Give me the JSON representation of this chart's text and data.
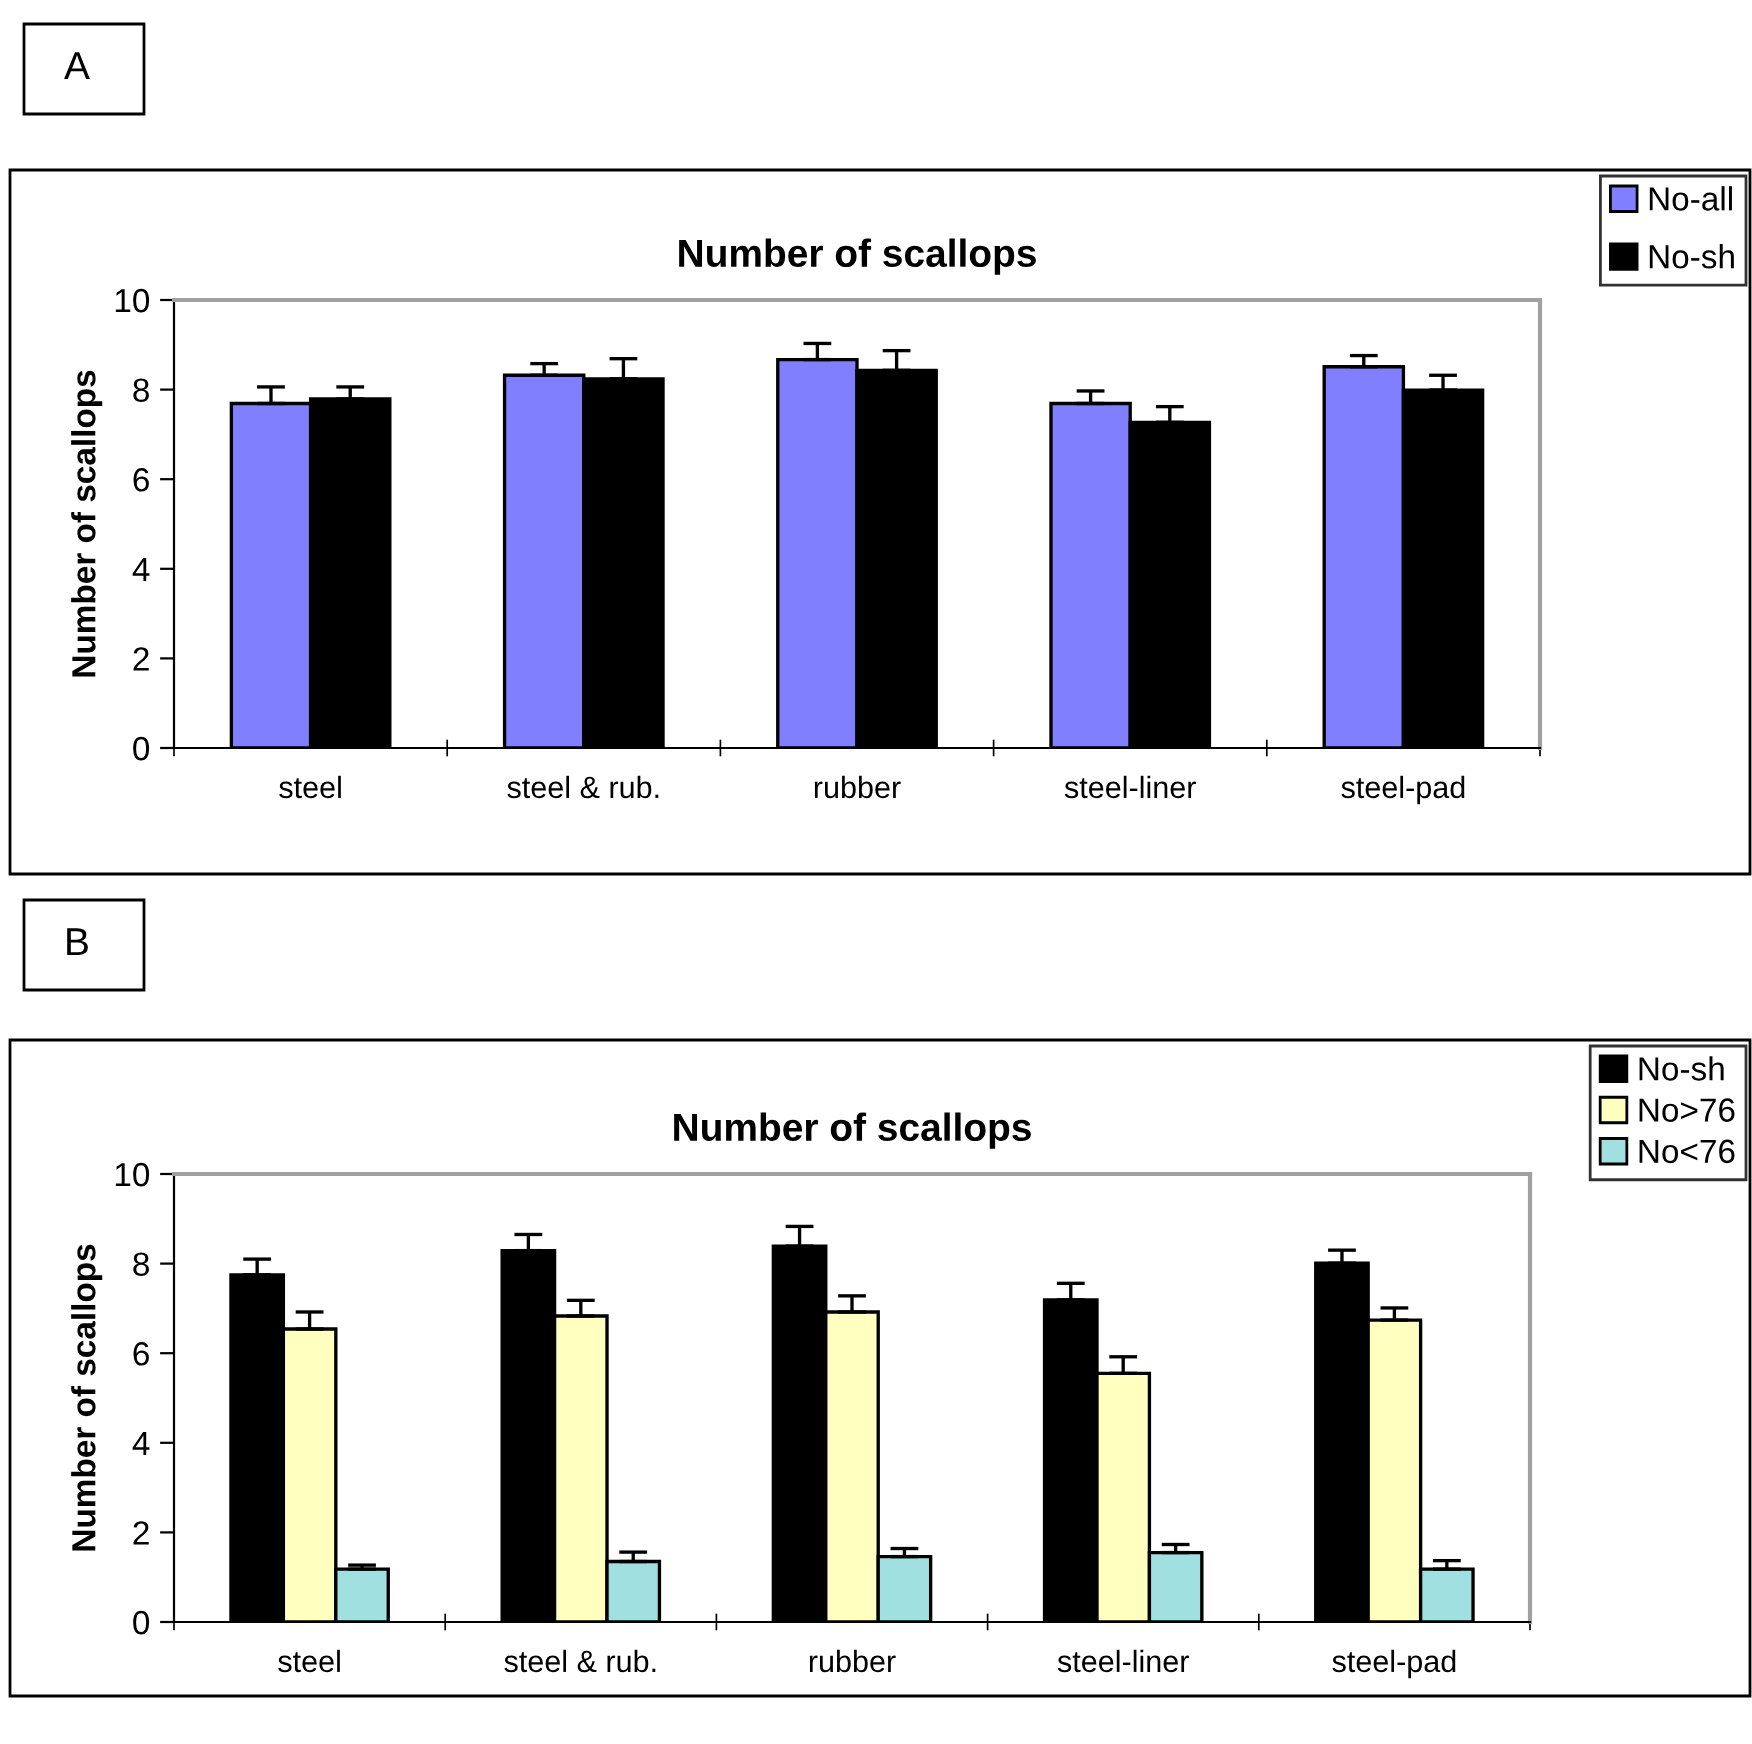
{
  "chart_data": [
    {
      "type": "bar",
      "title": "Number of scallops",
      "ylabel": "Number of scallops",
      "annotations": [
        "A"
      ],
      "categories": [
        "steel",
        "steel & rub.",
        "rubber",
        "steel-liner",
        "steel-pad"
      ],
      "series": [
        {
          "name": "No-all",
          "color": "#8080ff",
          "values": [
            7.69,
            8.32,
            8.67,
            7.69,
            8.51
          ],
          "errors": [
            [
              7.69,
              8.06
            ],
            [
              8.32,
              8.58
            ],
            [
              8.67,
              9.03
            ],
            [
              7.69,
              7.97
            ],
            [
              8.51,
              8.76
            ]
          ]
        },
        {
          "name": "No-sh",
          "color": "#000000",
          "values": [
            7.79,
            8.24,
            8.43,
            7.27,
            7.99
          ],
          "errors": [
            [
              7.79,
              8.06
            ],
            [
              8.24,
              8.69
            ],
            [
              8.43,
              8.87
            ],
            [
              7.27,
              7.62
            ],
            [
              7.99,
              8.32
            ]
          ]
        }
      ],
      "ylim": [
        0,
        10
      ],
      "yticks": [
        0,
        2,
        4,
        6,
        8,
        10
      ],
      "grid": false,
      "legend": "top right"
    },
    {
      "type": "bar",
      "title": "Number of scallops",
      "ylabel": "Number of scallops",
      "annotations": [
        "B"
      ],
      "categories": [
        "steel",
        "steel & rub.",
        "rubber",
        "steel-liner",
        "steel-pad"
      ],
      "series": [
        {
          "name": "No-sh",
          "color": "#000000",
          "values": [
            7.75,
            8.29,
            8.39,
            7.19,
            8.01
          ],
          "errors": [
            [
              7.75,
              8.1
            ],
            [
              8.29,
              8.65
            ],
            [
              8.39,
              8.83
            ],
            [
              7.19,
              7.56
            ],
            [
              8.01,
              8.3
            ]
          ]
        },
        {
          "name": "No>76",
          "color": "#ffffc0",
          "values": [
            6.54,
            6.83,
            6.92,
            5.55,
            6.74
          ],
          "errors": [
            [
              6.54,
              6.92
            ],
            [
              6.83,
              7.18
            ],
            [
              6.92,
              7.28
            ],
            [
              5.55,
              5.92
            ],
            [
              6.74,
              7.01
            ]
          ]
        },
        {
          "name": "No<76",
          "color": "#a0e0e0",
          "values": [
            1.18,
            1.35,
            1.46,
            1.55,
            1.18
          ],
          "errors": [
            [
              1.18,
              1.27
            ],
            [
              1.35,
              1.56
            ],
            [
              1.46,
              1.64
            ],
            [
              1.55,
              1.73
            ],
            [
              1.18,
              1.37
            ]
          ]
        }
      ],
      "ylim": [
        0,
        10
      ],
      "yticks": [
        0,
        2,
        4,
        6,
        8,
        10
      ],
      "grid": false,
      "legend": "top right"
    }
  ]
}
